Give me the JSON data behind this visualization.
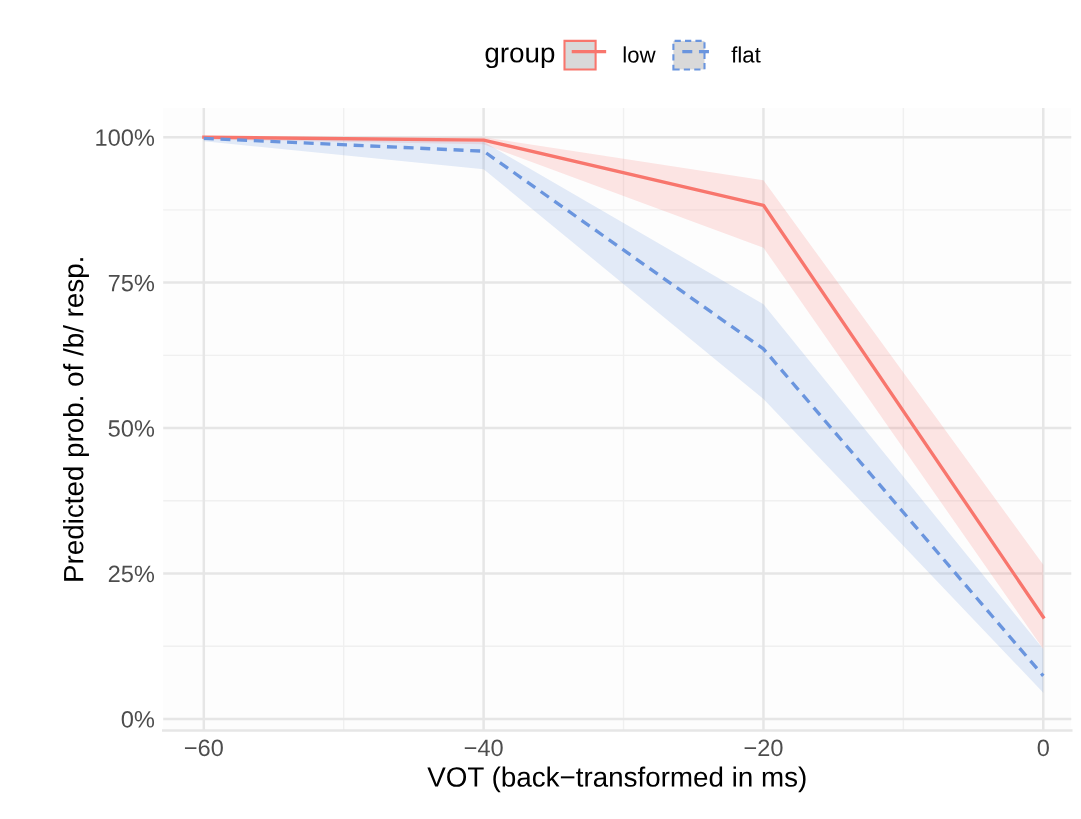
{
  "chart_data": {
    "type": "line",
    "xlabel": "VOT (back−transformed in ms)",
    "ylabel": "Predicted prob. of /b/ resp.",
    "legend_title": "group",
    "legend": "top",
    "x": [
      -60,
      -40,
      -20,
      0
    ],
    "series": [
      {
        "name": "low",
        "color": "#f8766d",
        "line_style": "solid",
        "values": [
          100,
          99.5,
          88.3,
          17.5
        ],
        "lower": [
          99.6,
          98.8,
          81,
          12
        ],
        "upper": [
          100,
          100,
          92.6,
          26.5
        ]
      },
      {
        "name": "flat",
        "color": "#6a95de",
        "line_style": "dashed",
        "values": [
          99.8,
          97.6,
          63.6,
          7.4
        ],
        "lower": [
          99.3,
          94.5,
          55,
          4.5
        ],
        "upper": [
          100,
          99.2,
          71.3,
          12
        ]
      }
    ],
    "xlim": [
      -62.9,
      2
    ],
    "ylim": [
      -2,
      105
    ],
    "xticks": [
      {
        "value": -60,
        "label": "−60"
      },
      {
        "value": -40,
        "label": "−40"
      },
      {
        "value": -20,
        "label": "−20"
      },
      0
    ],
    "yticks": [
      {
        "value": 0,
        "label": "0%"
      },
      {
        "value": 25,
        "label": "25%"
      },
      {
        "value": 50,
        "label": "50%"
      },
      {
        "value": 75,
        "label": "75%"
      },
      {
        "value": 100,
        "label": "100%"
      }
    ],
    "grid": true
  }
}
